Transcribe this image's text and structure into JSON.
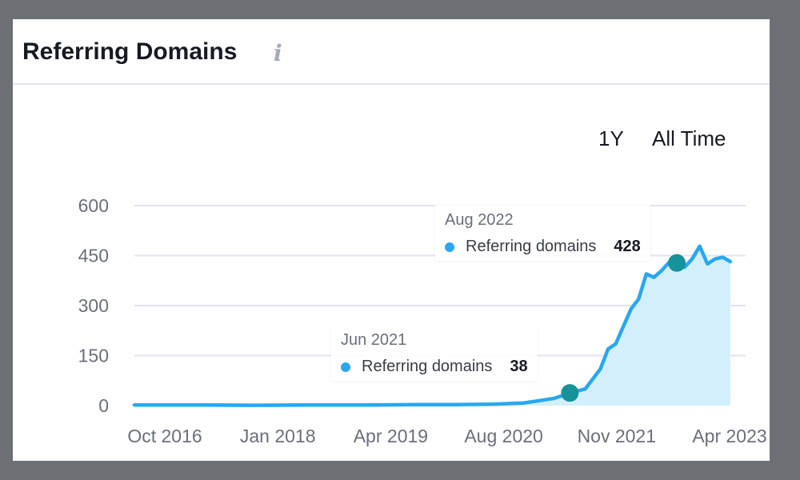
{
  "header": {
    "title": "Referring Domains",
    "info_icon": "info-icon"
  },
  "range_buttons": [
    "1Y",
    "All Time"
  ],
  "colors": {
    "line": "#2aa7f0",
    "area": "#d3effc",
    "marker": "#16929a",
    "grid": "#e3e4ee"
  },
  "tooltips": [
    {
      "date": "Aug 2022",
      "series": "Referring domains",
      "value": "428"
    },
    {
      "date": "Jun 2021",
      "series": "Referring domains",
      "value": "38"
    }
  ],
  "chart_data": {
    "type": "area",
    "title": "Referring Domains",
    "xlabel": "",
    "ylabel": "",
    "ylim": [
      0,
      600
    ],
    "y_ticks": [
      0,
      150,
      300,
      450,
      600
    ],
    "x_ticks": [
      "Oct 2016",
      "Jan 2018",
      "Apr 2019",
      "Aug 2020",
      "Nov 2021",
      "Apr 2023"
    ],
    "xlim": [
      "2016-09",
      "2023-05"
    ],
    "grid": true,
    "legend": "none",
    "series": [
      {
        "name": "Referring domains",
        "points": [
          {
            "x": "2016-09",
            "y": 2
          },
          {
            "x": "2017-06",
            "y": 2
          },
          {
            "x": "2018-01",
            "y": 1
          },
          {
            "x": "2018-09",
            "y": 2
          },
          {
            "x": "2019-04",
            "y": 2
          },
          {
            "x": "2019-10",
            "y": 3
          },
          {
            "x": "2020-03",
            "y": 3
          },
          {
            "x": "2020-08",
            "y": 4
          },
          {
            "x": "2020-12",
            "y": 8
          },
          {
            "x": "2021-02",
            "y": 15
          },
          {
            "x": "2021-04",
            "y": 22
          },
          {
            "x": "2021-06",
            "y": 38
          },
          {
            "x": "2021-08",
            "y": 50
          },
          {
            "x": "2021-10",
            "y": 110
          },
          {
            "x": "2021-11",
            "y": 170
          },
          {
            "x": "2021-12",
            "y": 185
          },
          {
            "x": "2022-02",
            "y": 290
          },
          {
            "x": "2022-03",
            "y": 320
          },
          {
            "x": "2022-04",
            "y": 395
          },
          {
            "x": "2022-05",
            "y": 385
          },
          {
            "x": "2022-06",
            "y": 405
          },
          {
            "x": "2022-07",
            "y": 430
          },
          {
            "x": "2022-08",
            "y": 428
          },
          {
            "x": "2022-09",
            "y": 415
          },
          {
            "x": "2022-10",
            "y": 440
          },
          {
            "x": "2022-11",
            "y": 478
          },
          {
            "x": "2022-12",
            "y": 425
          },
          {
            "x": "2023-01",
            "y": 440
          },
          {
            "x": "2023-02",
            "y": 445
          },
          {
            "x": "2023-03",
            "y": 432
          }
        ]
      }
    ],
    "highlighted_points": [
      {
        "x": "2021-06",
        "y": 38
      },
      {
        "x": "2022-08",
        "y": 428
      }
    ]
  }
}
